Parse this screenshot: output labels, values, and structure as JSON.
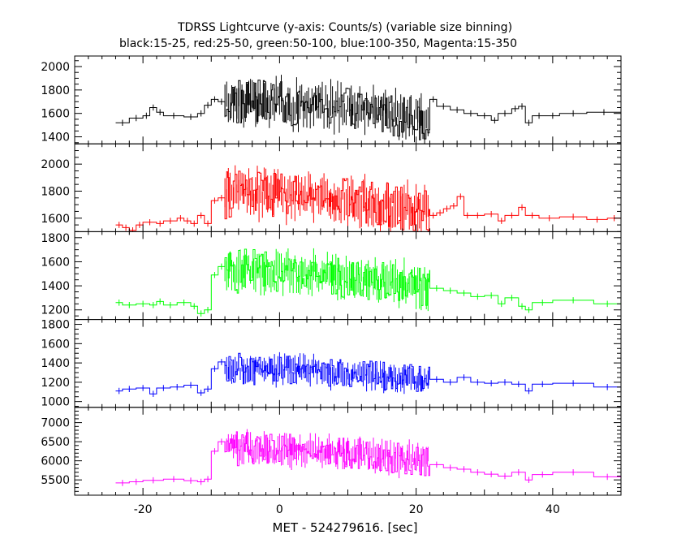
{
  "chart_data": {
    "type": "line",
    "title": "TDRSS Lightcurve (y-axis: Counts/s) (variable size binning)",
    "subtitle": "black:15-25, red:25-50, green:50-100, blue:100-350, Magenta:15-350",
    "xlabel": "MET - 524279616. [sec]",
    "xlim": [
      -30,
      50
    ],
    "x_ticks": [
      -20,
      0,
      20,
      40
    ],
    "grid": false,
    "panels": [
      {
        "name": "black",
        "color": "#000000",
        "ylim": [
          1340,
          2090
        ],
        "y_ticks": [
          1400,
          1600,
          1800,
          2000
        ],
        "baseline_segments": [
          {
            "x": [
              -24,
              -22
            ],
            "y": 1520
          },
          {
            "x": [
              -22,
              -20
            ],
            "y": 1560
          },
          {
            "x": [
              -20,
              -19
            ],
            "y": 1580
          },
          {
            "x": [
              -19,
              -18
            ],
            "y": 1650
          },
          {
            "x": [
              -18,
              -17
            ],
            "y": 1610
          },
          {
            "x": [
              -17,
              -14
            ],
            "y": 1580
          },
          {
            "x": [
              -14,
              -12
            ],
            "y": 1570
          },
          {
            "x": [
              -12,
              -11
            ],
            "y": 1600
          },
          {
            "x": [
              -11,
              -10
            ],
            "y": 1670
          },
          {
            "x": [
              -10,
              -9
            ],
            "y": 1720
          },
          {
            "x": [
              -9,
              -8
            ],
            "y": 1700
          }
        ],
        "burst": {
          "x_start": -8,
          "x_end": 22,
          "base": 1700,
          "amplitude": 190
        },
        "tail_segments": [
          {
            "x": [
              22,
              23
            ],
            "y": 1720
          },
          {
            "x": [
              23,
              25
            ],
            "y": 1660
          },
          {
            "x": [
              25,
              27
            ],
            "y": 1630
          },
          {
            "x": [
              27,
              29
            ],
            "y": 1600
          },
          {
            "x": [
              29,
              31
            ],
            "y": 1580
          },
          {
            "x": [
              31,
              32
            ],
            "y": 1540
          },
          {
            "x": [
              32,
              34
            ],
            "y": 1600
          },
          {
            "x": [
              34,
              35
            ],
            "y": 1640
          },
          {
            "x": [
              35,
              36
            ],
            "y": 1660
          },
          {
            "x": [
              36,
              37
            ],
            "y": 1520
          },
          {
            "x": [
              37,
              39
            ],
            "y": 1580
          },
          {
            "x": [
              39,
              41
            ],
            "y": 1580
          },
          {
            "x": [
              41,
              45
            ],
            "y": 1600
          },
          {
            "x": [
              45,
              50
            ],
            "y": 1610
          }
        ]
      },
      {
        "name": "red",
        "color": "#ff0000",
        "ylim": [
          1500,
          2150
        ],
        "y_ticks": [
          1600,
          1800,
          2000
        ],
        "baseline_segments": [
          {
            "x": [
              -24,
              -23
            ],
            "y": 1550
          },
          {
            "x": [
              -23,
              -22
            ],
            "y": 1530
          },
          {
            "x": [
              -22,
              -21
            ],
            "y": 1510
          },
          {
            "x": [
              -21,
              -20
            ],
            "y": 1550
          },
          {
            "x": [
              -20,
              -18
            ],
            "y": 1570
          },
          {
            "x": [
              -18,
              -17
            ],
            "y": 1560
          },
          {
            "x": [
              -17,
              -15
            ],
            "y": 1580
          },
          {
            "x": [
              -15,
              -14
            ],
            "y": 1600
          },
          {
            "x": [
              -14,
              -13
            ],
            "y": 1580
          },
          {
            "x": [
              -13,
              -12
            ],
            "y": 1560
          },
          {
            "x": [
              -12,
              -11
            ],
            "y": 1620
          },
          {
            "x": [
              -11,
              -10
            ],
            "y": 1560
          },
          {
            "x": [
              -10,
              -9
            ],
            "y": 1730
          },
          {
            "x": [
              -9,
              -8
            ],
            "y": 1750
          }
        ],
        "burst": {
          "x_start": -8,
          "x_end": 22,
          "base": 1780,
          "amplitude": 170
        },
        "tail_segments": [
          {
            "x": [
              22,
              23
            ],
            "y": 1620
          },
          {
            "x": [
              23,
              24
            ],
            "y": 1640
          },
          {
            "x": [
              24,
              25
            ],
            "y": 1670
          },
          {
            "x": [
              25,
              26
            ],
            "y": 1690
          },
          {
            "x": [
              26,
              27
            ],
            "y": 1760
          },
          {
            "x": [
              27,
              28
            ],
            "y": 1620
          },
          {
            "x": [
              28,
              30
            ],
            "y": 1620
          },
          {
            "x": [
              30,
              32
            ],
            "y": 1630
          },
          {
            "x": [
              32,
              33
            ],
            "y": 1580
          },
          {
            "x": [
              33,
              35
            ],
            "y": 1620
          },
          {
            "x": [
              35,
              36
            ],
            "y": 1680
          },
          {
            "x": [
              36,
              38
            ],
            "y": 1620
          },
          {
            "x": [
              38,
              41
            ],
            "y": 1600
          },
          {
            "x": [
              41,
              45
            ],
            "y": 1610
          },
          {
            "x": [
              45,
              48
            ],
            "y": 1590
          },
          {
            "x": [
              48,
              50
            ],
            "y": 1600
          }
        ]
      },
      {
        "name": "green",
        "color": "#00ff00",
        "ylim": [
          1120,
          1850
        ],
        "y_ticks": [
          1200,
          1400,
          1600,
          1800
        ],
        "baseline_segments": [
          {
            "x": [
              -24,
              -23
            ],
            "y": 1260
          },
          {
            "x": [
              -23,
              -21
            ],
            "y": 1240
          },
          {
            "x": [
              -21,
              -19
            ],
            "y": 1250
          },
          {
            "x": [
              -19,
              -18
            ],
            "y": 1240
          },
          {
            "x": [
              -18,
              -17
            ],
            "y": 1270
          },
          {
            "x": [
              -17,
              -15
            ],
            "y": 1240
          },
          {
            "x": [
              -15,
              -13
            ],
            "y": 1260
          },
          {
            "x": [
              -13,
              -12
            ],
            "y": 1230
          },
          {
            "x": [
              -12,
              -11
            ],
            "y": 1170
          },
          {
            "x": [
              -11,
              -10
            ],
            "y": 1200
          },
          {
            "x": [
              -10,
              -9
            ],
            "y": 1490
          },
          {
            "x": [
              -9,
              -8
            ],
            "y": 1560
          }
        ],
        "burst": {
          "x_start": -8,
          "x_end": 22,
          "base": 1520,
          "amplitude": 170
        },
        "tail_segments": [
          {
            "x": [
              22,
              24
            ],
            "y": 1380
          },
          {
            "x": [
              24,
              26
            ],
            "y": 1360
          },
          {
            "x": [
              26,
              28
            ],
            "y": 1340
          },
          {
            "x": [
              28,
              30
            ],
            "y": 1310
          },
          {
            "x": [
              30,
              32
            ],
            "y": 1320
          },
          {
            "x": [
              32,
              33
            ],
            "y": 1250
          },
          {
            "x": [
              33,
              35
            ],
            "y": 1300
          },
          {
            "x": [
              35,
              36
            ],
            "y": 1230
          },
          {
            "x": [
              36,
              37
            ],
            "y": 1200
          },
          {
            "x": [
              37,
              40
            ],
            "y": 1260
          },
          {
            "x": [
              40,
              46
            ],
            "y": 1280
          },
          {
            "x": [
              46,
              50
            ],
            "y": 1250
          }
        ]
      },
      {
        "name": "blue",
        "color": "#0000ff",
        "ylim": [
          940,
          1850
        ],
        "y_ticks": [
          1000,
          1200,
          1400,
          1600,
          1800
        ],
        "baseline_segments": [
          {
            "x": [
              -24,
              -23
            ],
            "y": 1110
          },
          {
            "x": [
              -23,
              -21
            ],
            "y": 1130
          },
          {
            "x": [
              -21,
              -19
            ],
            "y": 1140
          },
          {
            "x": [
              -19,
              -18
            ],
            "y": 1080
          },
          {
            "x": [
              -18,
              -16
            ],
            "y": 1140
          },
          {
            "x": [
              -16,
              -14
            ],
            "y": 1150
          },
          {
            "x": [
              -14,
              -12
            ],
            "y": 1170
          },
          {
            "x": [
              -12,
              -11
            ],
            "y": 1090
          },
          {
            "x": [
              -11,
              -10
            ],
            "y": 1130
          },
          {
            "x": [
              -10,
              -9
            ],
            "y": 1340
          },
          {
            "x": [
              -9,
              -8
            ],
            "y": 1410
          }
        ],
        "burst": {
          "x_start": -8,
          "x_end": 22,
          "base": 1340,
          "amplitude": 150
        },
        "tail_segments": [
          {
            "x": [
              22,
              24
            ],
            "y": 1230
          },
          {
            "x": [
              24,
              26
            ],
            "y": 1200
          },
          {
            "x": [
              26,
              28
            ],
            "y": 1250
          },
          {
            "x": [
              28,
              30
            ],
            "y": 1200
          },
          {
            "x": [
              30,
              32
            ],
            "y": 1190
          },
          {
            "x": [
              32,
              34
            ],
            "y": 1200
          },
          {
            "x": [
              34,
              36
            ],
            "y": 1180
          },
          {
            "x": [
              36,
              37
            ],
            "y": 1110
          },
          {
            "x": [
              37,
              40
            ],
            "y": 1180
          },
          {
            "x": [
              40,
              46
            ],
            "y": 1190
          },
          {
            "x": [
              46,
              50
            ],
            "y": 1150
          }
        ]
      },
      {
        "name": "Magenta",
        "color": "#ff00ff",
        "ylim": [
          5100,
          7400
        ],
        "y_ticks": [
          5500,
          6000,
          6500,
          7000
        ],
        "baseline_segments": [
          {
            "x": [
              -24,
              -22
            ],
            "y": 5420
          },
          {
            "x": [
              -22,
              -20
            ],
            "y": 5450
          },
          {
            "x": [
              -20,
              -17
            ],
            "y": 5490
          },
          {
            "x": [
              -17,
              -14
            ],
            "y": 5520
          },
          {
            "x": [
              -14,
              -12
            ],
            "y": 5480
          },
          {
            "x": [
              -12,
              -11
            ],
            "y": 5450
          },
          {
            "x": [
              -11,
              -10
            ],
            "y": 5520
          },
          {
            "x": [
              -10,
              -9
            ],
            "y": 6250
          },
          {
            "x": [
              -9,
              -8
            ],
            "y": 6500
          }
        ],
        "burst": {
          "x_start": -8,
          "x_end": 22,
          "base": 6330,
          "amplitude": 420
        },
        "tail_segments": [
          {
            "x": [
              22,
              24
            ],
            "y": 5900
          },
          {
            "x": [
              24,
              26
            ],
            "y": 5820
          },
          {
            "x": [
              26,
              28
            ],
            "y": 5780
          },
          {
            "x": [
              28,
              30
            ],
            "y": 5700
          },
          {
            "x": [
              30,
              32
            ],
            "y": 5650
          },
          {
            "x": [
              32,
              34
            ],
            "y": 5600
          },
          {
            "x": [
              34,
              36
            ],
            "y": 5700
          },
          {
            "x": [
              36,
              37
            ],
            "y": 5500
          },
          {
            "x": [
              37,
              40
            ],
            "y": 5640
          },
          {
            "x": [
              40,
              46
            ],
            "y": 5700
          },
          {
            "x": [
              46,
              50
            ],
            "y": 5580
          }
        ]
      }
    ]
  }
}
